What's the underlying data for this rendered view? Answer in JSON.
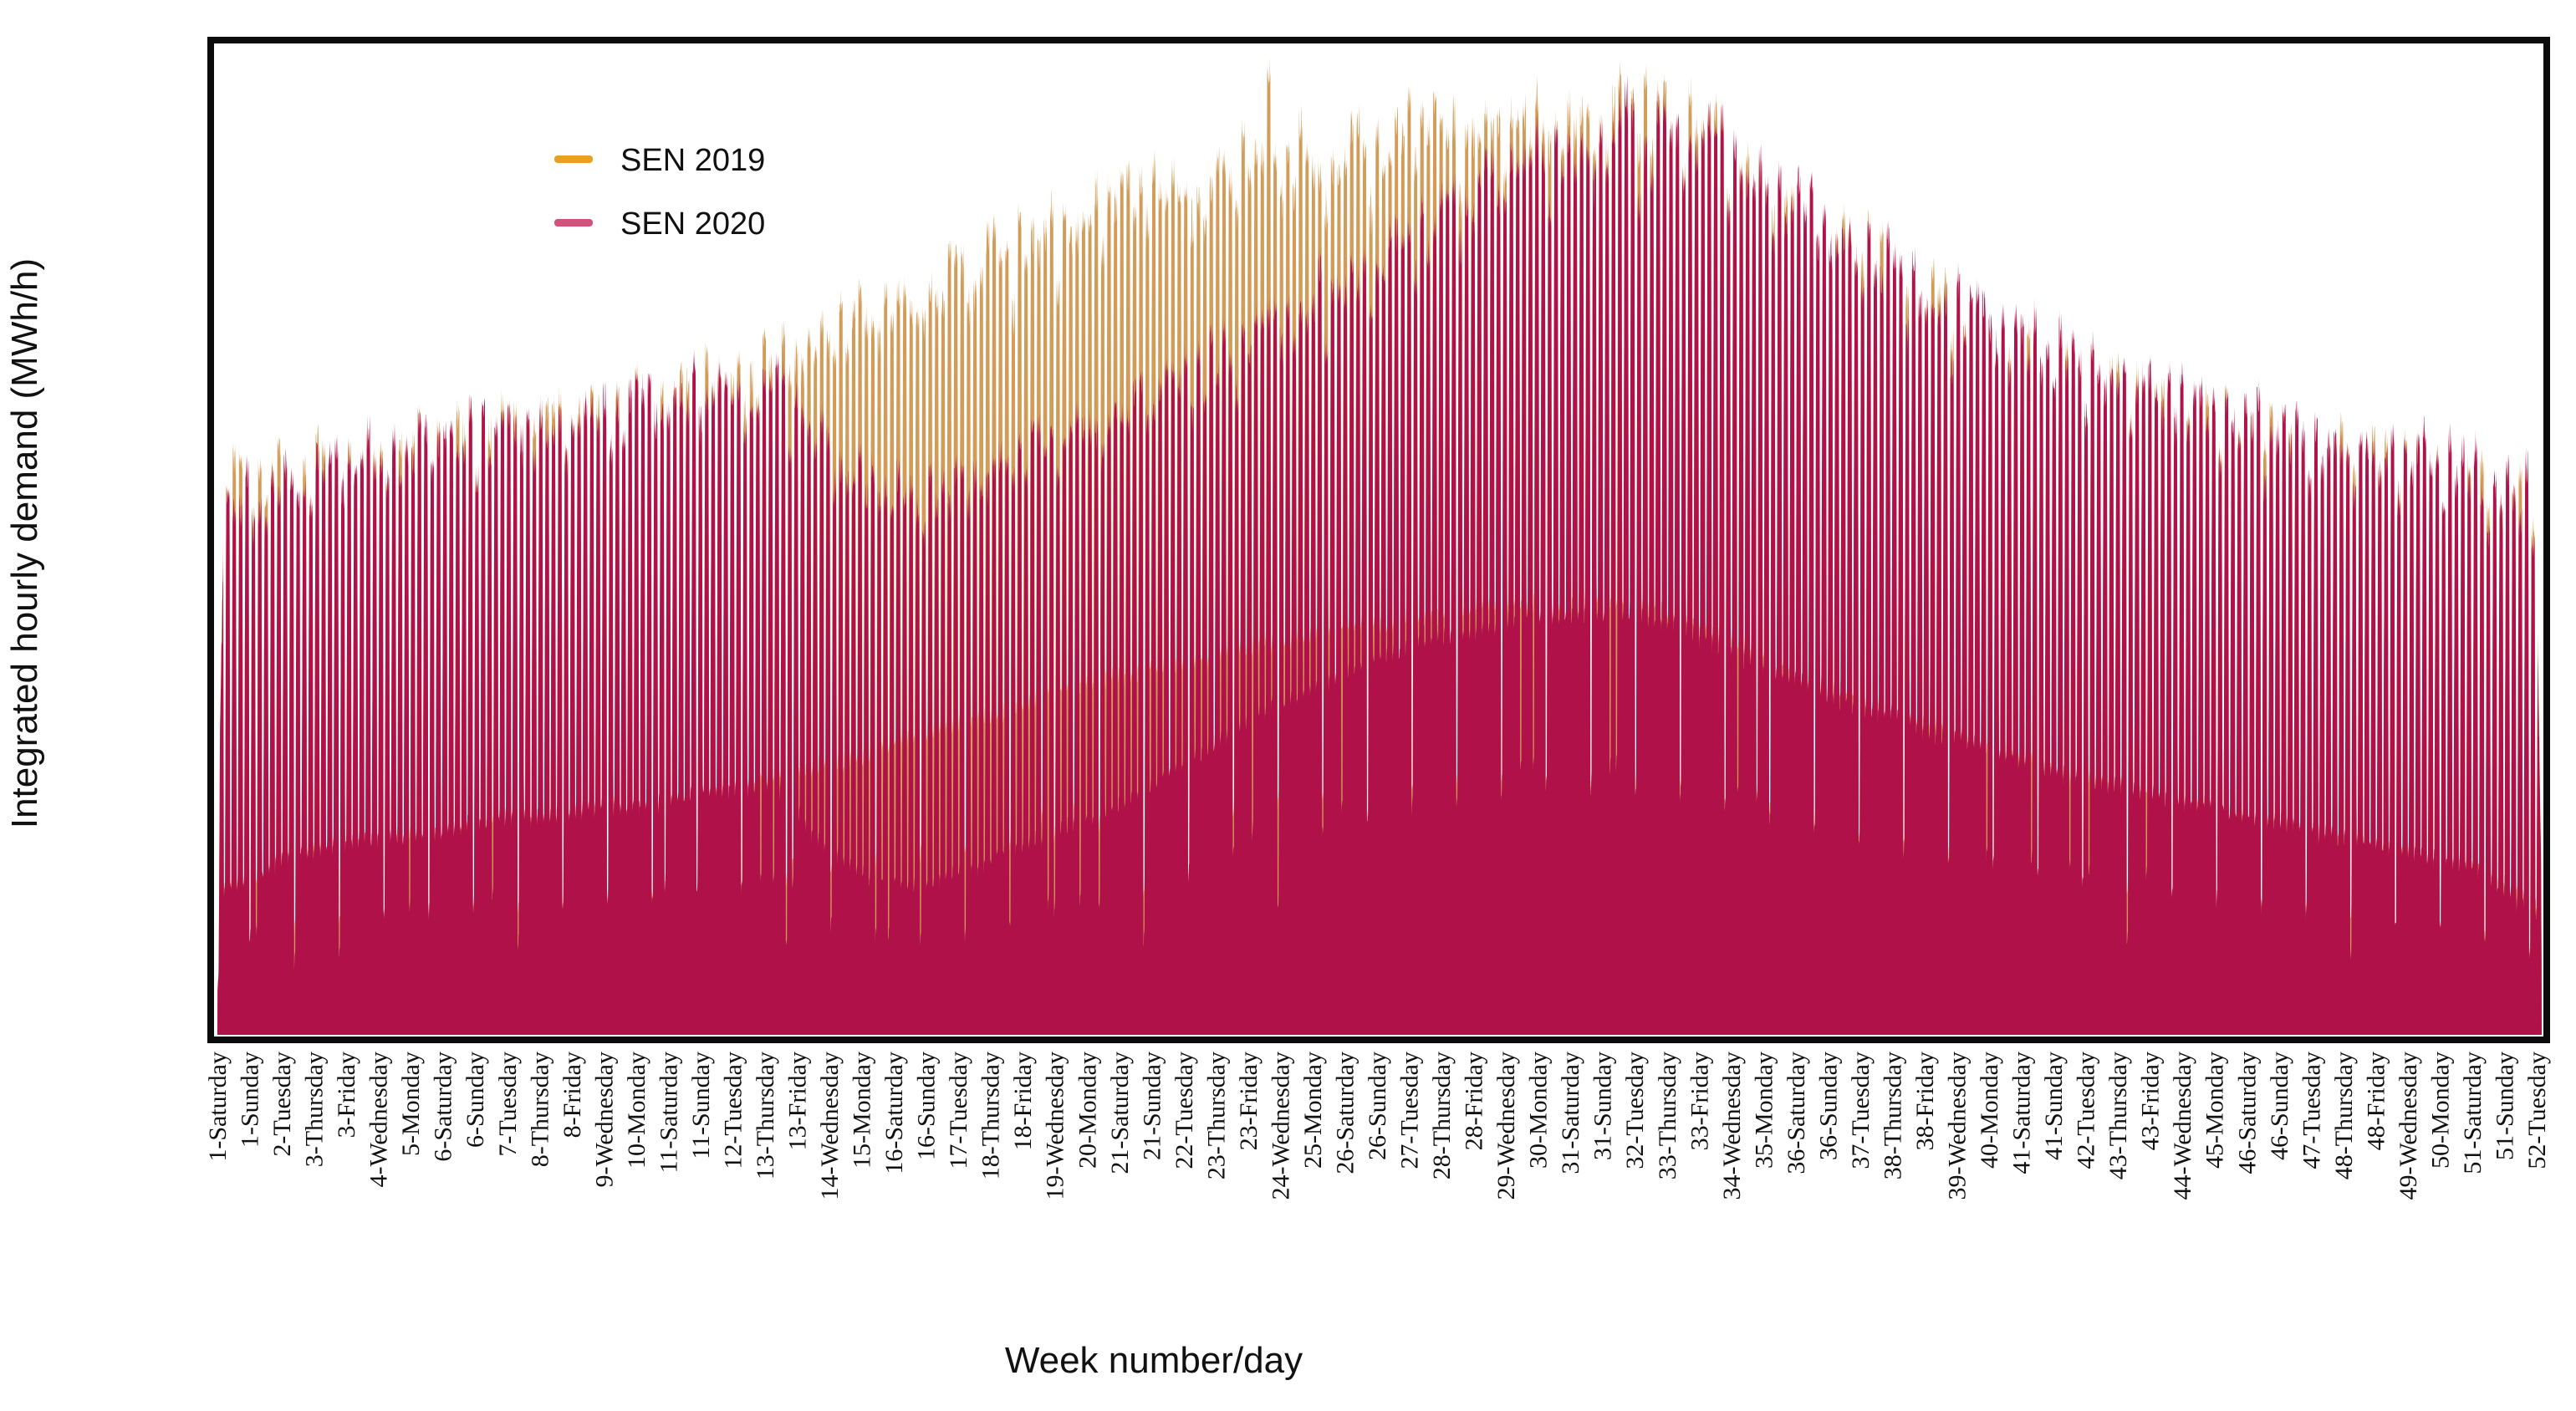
{
  "chart_data": {
    "type": "area",
    "description": "Dense hourly electricity demand curves for 52 weeks (364 day slots x 24 h), SEN 2019 drawn behind SEN 2020",
    "title": "",
    "xlabel": "Week number/day",
    "ylabel": "Integrated hourly demand (MWh/h)",
    "legend_position": "upper-left-inset",
    "y_axis_ticks": "none",
    "value_scale": {
      "min": 0,
      "max": 100
    },
    "weeks": 52,
    "days_per_week": 7,
    "hours_per_day": 24,
    "seed": 42,
    "render_params": {
      "weekend_slots": [
        0,
        5
      ],
      "saturday_factor": 0.95,
      "sunday_factor": 0.9,
      "sunday_night_trough_factor": 0.55,
      "daily_jitter": 0.12,
      "hourly_noise": 1.6,
      "deep_night_probability": 0.1,
      "deep_night_factor": 0.6
    },
    "series": [
      {
        "name": "SEN 2019",
        "line_color": "#E6A11F",
        "fill_color": "#D29C58",
        "weekly_peak": [
          56,
          57,
          58,
          59,
          60,
          61,
          62,
          63,
          63,
          64,
          66,
          67,
          69,
          71,
          73,
          75,
          77,
          79,
          81,
          83,
          85,
          86,
          87,
          88,
          90,
          91,
          91,
          92,
          93,
          93,
          94,
          94,
          93,
          90,
          87,
          83,
          80,
          77,
          74,
          72,
          69,
          67,
          66,
          64,
          62,
          61,
          60,
          59,
          58,
          57,
          56,
          55
        ],
        "weekly_trough": [
          13,
          16,
          17,
          18,
          18,
          19,
          20,
          20,
          21,
          21,
          22,
          23,
          24,
          25,
          26,
          28,
          29,
          30,
          32,
          33,
          34,
          35,
          36,
          37,
          38,
          39,
          39,
          40,
          41,
          41,
          41,
          41,
          40,
          38,
          36,
          34,
          32,
          30,
          29,
          27,
          26,
          24,
          23,
          22,
          21,
          20,
          19,
          18,
          17,
          16,
          15,
          12
        ],
        "spikes": [
          {
            "week": 24,
            "day_slot": 3,
            "value": 97.5
          }
        ]
      },
      {
        "name": "SEN 2020",
        "line_color": "#D4517B",
        "fill_color": "#B01149",
        "weekly_peak": [
          55,
          57,
          58,
          59,
          60,
          61,
          62,
          62,
          63,
          64,
          65,
          66,
          66,
          60,
          56,
          55,
          56,
          58,
          60,
          62,
          65,
          67,
          69,
          72,
          75,
          78,
          81,
          84,
          87,
          89,
          91,
          92,
          92,
          90,
          87,
          84,
          80,
          78,
          75,
          73,
          70,
          68,
          67,
          65,
          63,
          62,
          61,
          60,
          59,
          58,
          57,
          55
        ],
        "weekly_trough": [
          13,
          16,
          17,
          18,
          18,
          19,
          20,
          20,
          21,
          21,
          22,
          23,
          23,
          17,
          14,
          13,
          14,
          16,
          18,
          20,
          22,
          25,
          28,
          31,
          33,
          35,
          37,
          38,
          39,
          40,
          40,
          40,
          39,
          37,
          35,
          33,
          31,
          30,
          28,
          27,
          25,
          24,
          23,
          22,
          21,
          20,
          19,
          18,
          17,
          16,
          15,
          11
        ],
        "spikes": []
      }
    ],
    "x_tick_labels": [
      "1-Saturday",
      "1-Sunday",
      "2-Tuesday",
      "3-Thursday",
      "3-Friday",
      "4-Wednesday",
      "5-Monday",
      "6-Saturday",
      "6-Sunday",
      "7-Tuesday",
      "8-Thursday",
      "8-Friday",
      "9-Wednesday",
      "10-Monday",
      "11-Saturday",
      "11-Sunday",
      "12-Tuesday",
      "13-Thursday",
      "13-Friday",
      "14-Wednesday",
      "15-Monday",
      "16-Saturday",
      "16-Sunday",
      "17-Tuesday",
      "18-Thursday",
      "18-Friday",
      "19-Wednesday",
      "20-Monday",
      "21-Saturday",
      "21-Sunday",
      "22-Tuesday",
      "23-Thursday",
      "23-Friday",
      "24-Wednesday",
      "25-Monday",
      "26-Saturday",
      "26-Sunday",
      "27-Tuesday",
      "28-Thursday",
      "28-Friday",
      "29-Wednesday",
      "30-Monday",
      "31-Saturday",
      "31-Sunday",
      "32-Tuesday",
      "33-Thursday",
      "33-Friday",
      "34-Wednesday",
      "35-Monday",
      "36-Saturday",
      "36-Sunday",
      "37-Tuesday",
      "38-Thursday",
      "38-Friday",
      "39-Wednesday",
      "40-Monday",
      "41-Saturday",
      "41-Sunday",
      "42-Tuesday",
      "43-Thursday",
      "43-Friday",
      "44-Wednesday",
      "45-Monday",
      "46-Saturday",
      "46-Sunday",
      "47-Tuesday",
      "48-Thursday",
      "48-Friday",
      "49-Wednesday",
      "50-Monday",
      "51-Saturday",
      "51-Sunday",
      "52-Tuesday"
    ]
  }
}
